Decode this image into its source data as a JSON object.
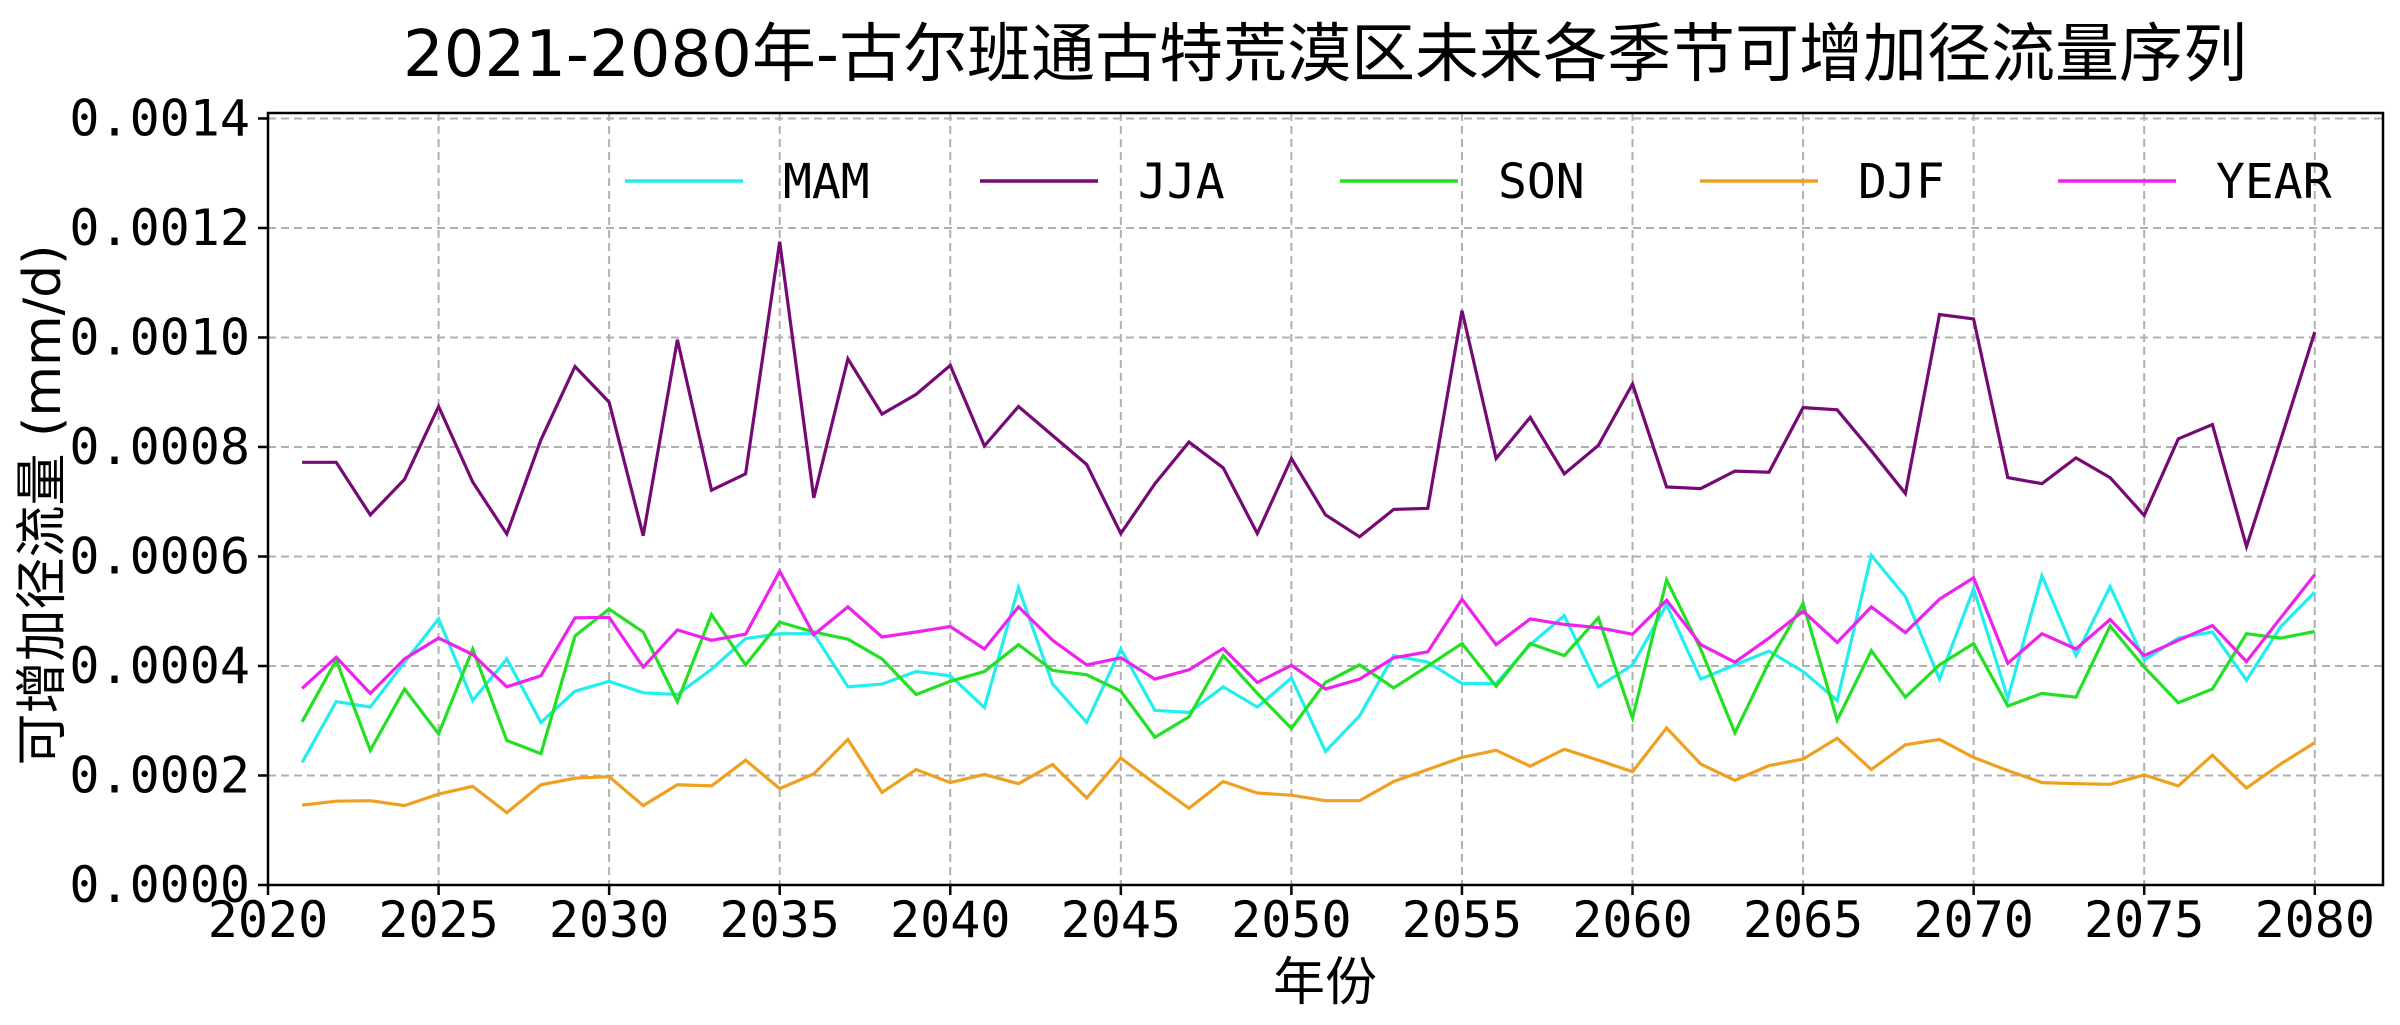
{
  "chart_data": {
    "type": "line",
    "title": "2021-2080年-古尔班通古特荒漠区未来各季节可增加径流量序列",
    "xlabel": "年份",
    "ylabel": "可增加径流量 (mm/d)",
    "xlim": [
      2020,
      2082
    ],
    "ylim": [
      0,
      0.00141
    ],
    "xticks": [
      2020,
      2025,
      2030,
      2035,
      2040,
      2045,
      2050,
      2055,
      2060,
      2065,
      2070,
      2075,
      2080
    ],
    "yticks": [
      "0.0000",
      "0.0002",
      "0.0004",
      "0.0006",
      "0.0008",
      "0.0010",
      "0.0012",
      "0.0014"
    ],
    "grid": true,
    "legend_placement": "top",
    "x_start": 2021,
    "x_end": 2080,
    "series": [
      {
        "name": "MAM",
        "color": "#22eeee",
        "values": [
          0.000224,
          0.000335,
          0.000325,
          0.000407,
          0.000486,
          0.000337,
          0.000413,
          0.000297,
          0.000354,
          0.000372,
          0.000351,
          0.000348,
          0.000394,
          0.00045,
          0.000459,
          0.000459,
          0.000362,
          0.000367,
          0.00039,
          0.000382,
          0.000324,
          0.000543,
          0.000367,
          0.000297,
          0.000431,
          0.000319,
          0.000315,
          0.000362,
          0.000325,
          0.000378,
          0.000244,
          0.000309,
          0.000419,
          0.000407,
          0.000368,
          0.000368,
          0.000439,
          0.000492,
          0.000362,
          0.000402,
          0.000512,
          0.000376,
          0.000402,
          0.000427,
          0.00039,
          0.000337,
          0.000602,
          0.000527,
          0.000376,
          0.000541,
          0.000341,
          0.000565,
          0.000419,
          0.000545,
          0.000411,
          0.000451,
          0.000462,
          0.000374,
          0.000472,
          0.000535
        ]
      },
      {
        "name": "JJA",
        "color": "#750a75",
        "values": [
          0.000772,
          0.000772,
          0.000676,
          0.000741,
          0.000874,
          0.000736,
          0.000641,
          0.000813,
          0.000947,
          0.000882,
          0.000638,
          0.000996,
          0.000721,
          0.000751,
          0.001175,
          0.000707,
          0.000961,
          0.00086,
          0.000896,
          0.000949,
          0.000802,
          0.000874,
          0.000821,
          0.000768,
          0.000642,
          0.000733,
          0.000809,
          0.000762,
          0.000642,
          0.000779,
          0.000676,
          0.000636,
          0.000686,
          0.000688,
          0.001049,
          0.000779,
          0.000854,
          0.000751,
          0.000803,
          0.000915,
          0.000727,
          0.000724,
          0.000756,
          0.000754,
          0.000872,
          0.000868,
          0.000793,
          0.000715,
          0.001042,
          0.001034,
          0.000744,
          0.000733,
          0.00078,
          0.000744,
          0.000675,
          0.000815,
          0.000841,
          0.000618,
          0.000813,
          0.00101
        ]
      },
      {
        "name": "SON",
        "color": "#22e022",
        "values": [
          0.000298,
          0.000411,
          0.000246,
          0.000358,
          0.000276,
          0.000431,
          0.000264,
          0.00024,
          0.000455,
          0.000504,
          0.000462,
          0.000335,
          0.000494,
          0.000402,
          0.00048,
          0.000462,
          0.000449,
          0.000413,
          0.000348,
          0.000372,
          0.00039,
          0.000439,
          0.000392,
          0.000384,
          0.000354,
          0.00027,
          0.000307,
          0.000419,
          0.00035,
          0.000286,
          0.00037,
          0.000402,
          0.00036,
          0.0004,
          0.000441,
          0.000363,
          0.000441,
          0.000419,
          0.000488,
          0.000305,
          0.000557,
          0.000431,
          0.000278,
          0.000407,
          0.000514,
          0.000301,
          0.000428,
          0.000343,
          0.000402,
          0.000441,
          0.000327,
          0.00035,
          0.000343,
          0.000473,
          0.000398,
          0.000333,
          0.000358,
          0.000459,
          0.000451,
          0.000463
        ]
      },
      {
        "name": "DJF",
        "color": "#f0a020",
        "values": [
          0.000146,
          0.000153,
          0.000154,
          0.000145,
          0.000166,
          0.00018,
          0.000132,
          0.000183,
          0.000195,
          0.000198,
          0.000145,
          0.000183,
          0.000181,
          0.000228,
          0.000176,
          0.000203,
          0.000266,
          0.000169,
          0.000211,
          0.000187,
          0.000202,
          0.000185,
          0.00022,
          0.000159,
          0.000232,
          0.000185,
          0.00014,
          0.000189,
          0.000168,
          0.000164,
          0.000154,
          0.000154,
          0.000189,
          0.000211,
          0.000233,
          0.000246,
          0.000217,
          0.000248,
          0.000228,
          0.000207,
          0.000287,
          0.000221,
          0.000191,
          0.000218,
          0.00023,
          0.000268,
          0.000211,
          0.000256,
          0.000266,
          0.000233,
          0.000209,
          0.000187,
          0.000185,
          0.000184,
          0.000201,
          0.000181,
          0.000237,
          0.000177,
          0.000221,
          0.00026
        ]
      },
      {
        "name": "YEAR",
        "color": "#ee22ee",
        "values": [
          0.000359,
          0.000416,
          0.00035,
          0.000413,
          0.000451,
          0.000421,
          0.000362,
          0.000382,
          0.000488,
          0.000489,
          0.000398,
          0.000466,
          0.000447,
          0.000458,
          0.000573,
          0.000457,
          0.000508,
          0.000453,
          0.000462,
          0.000472,
          0.000431,
          0.000508,
          0.000447,
          0.000402,
          0.000415,
          0.000376,
          0.000393,
          0.000432,
          0.00037,
          0.000401,
          0.000358,
          0.000376,
          0.000415,
          0.000426,
          0.000522,
          0.000439,
          0.000486,
          0.000476,
          0.00047,
          0.000458,
          0.00052,
          0.000439,
          0.000407,
          0.000451,
          0.0005,
          0.000443,
          0.000508,
          0.000461,
          0.000522,
          0.000561,
          0.000405,
          0.000459,
          0.000431,
          0.000485,
          0.000419,
          0.000447,
          0.000474,
          0.000408,
          0.000488,
          0.000567
        ]
      }
    ]
  }
}
